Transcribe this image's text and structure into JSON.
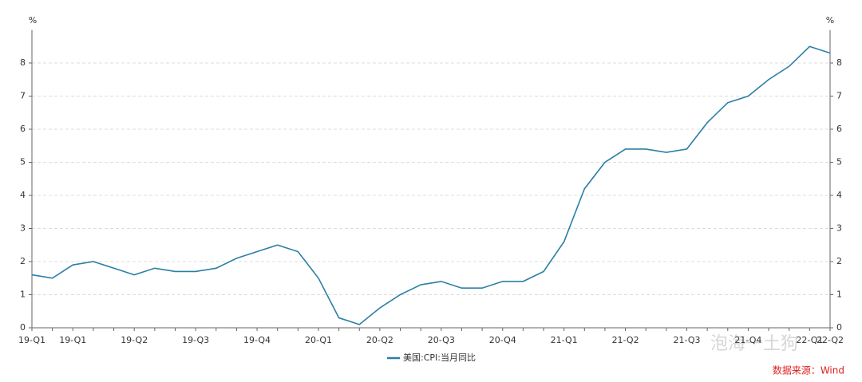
{
  "chart_data": {
    "type": "line",
    "y_unit": "%",
    "y2_unit": "%",
    "categories": [
      "19-Q1",
      null,
      "19-Q1",
      null,
      null,
      "19-Q2",
      null,
      null,
      "19-Q3",
      null,
      null,
      "19-Q4",
      null,
      null,
      "20-Q1",
      null,
      null,
      "20-Q2",
      null,
      null,
      "20-Q3",
      null,
      null,
      "20-Q4",
      null,
      null,
      "21-Q1",
      null,
      null,
      "21-Q2",
      null,
      null,
      "21-Q3",
      null,
      null,
      "21-Q4",
      null,
      null,
      "22-Q1",
      "22-Q2"
    ],
    "series": [
      {
        "name": "美国:CPI:当月同比",
        "color": "#2b7fa5",
        "values": [
          1.6,
          1.5,
          1.9,
          2.0,
          1.8,
          1.6,
          1.8,
          1.7,
          1.7,
          1.8,
          2.1,
          2.3,
          2.5,
          2.3,
          1.5,
          0.3,
          0.1,
          0.6,
          1.0,
          1.3,
          1.4,
          1.2,
          1.2,
          1.4,
          1.4,
          1.7,
          2.6,
          4.2,
          5.0,
          5.4,
          5.4,
          5.3,
          5.4,
          6.2,
          6.8,
          7.0,
          7.5,
          7.9,
          8.5,
          8.3
        ]
      }
    ],
    "ylim": [
      0,
      9
    ],
    "yticks": [
      0,
      1,
      2,
      3,
      4,
      5,
      6,
      7,
      8
    ],
    "y2lim": [
      0,
      9
    ],
    "y2ticks": [
      0,
      1,
      2,
      3,
      4,
      5,
      6,
      7,
      8
    ],
    "grid": true,
    "source": "数据来源：Wind",
    "watermark": "泡海一土狗"
  }
}
